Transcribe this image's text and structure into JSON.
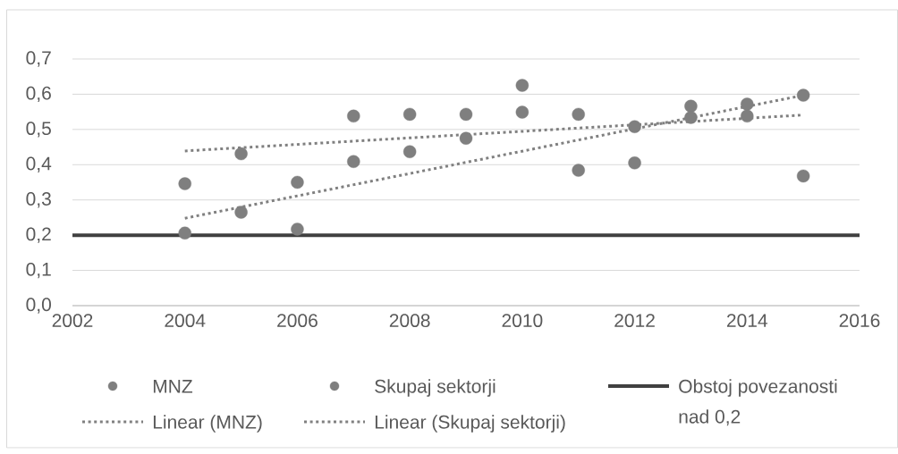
{
  "chart_data": {
    "type": "scatter",
    "xlim": [
      2002,
      2016
    ],
    "xticks": [
      2002,
      2004,
      2006,
      2008,
      2010,
      2012,
      2014,
      2016
    ],
    "ylim": [
      0,
      0.7
    ],
    "yticks": [
      {
        "value": 0,
        "label": "0,0"
      },
      {
        "value": 0.1,
        "label": "0,1"
      },
      {
        "value": 0.2,
        "label": "0,2"
      },
      {
        "value": 0.3,
        "label": "0,3"
      },
      {
        "value": 0.4,
        "label": "0,4"
      },
      {
        "value": 0.5,
        "label": "0,5"
      },
      {
        "value": 0.6,
        "label": "0,6"
      },
      {
        "value": 0.7,
        "label": "0,7"
      }
    ],
    "grid": "y",
    "legend": "bottom",
    "series": [
      {
        "name": "MNZ",
        "color": "#7f7f7f",
        "marker": "circle",
        "x": [
          2004,
          2005,
          2006,
          2007,
          2008,
          2009,
          2010,
          2011,
          2012,
          2013,
          2014,
          2015
        ],
        "values": [
          0.346,
          0.431,
          0.35,
          0.538,
          0.543,
          0.543,
          0.625,
          0.543,
          0.508,
          0.566,
          0.572,
          0.368
        ]
      },
      {
        "name": "Skupaj sektorji",
        "color": "#7f7f7f",
        "marker": "circle",
        "x": [
          2004,
          2005,
          2006,
          2007,
          2008,
          2009,
          2010,
          2011,
          2012,
          2013,
          2014,
          2015
        ],
        "values": [
          0.206,
          0.265,
          0.217,
          0.409,
          0.437,
          0.475,
          0.549,
          0.384,
          0.405,
          0.534,
          0.538,
          0.597
        ]
      },
      {
        "name": "Obstoj povezanosti nad 0,2",
        "type": "line",
        "line_style": "solid",
        "marker": "none",
        "color": "#404040",
        "x": [
          2002,
          2016
        ],
        "values": [
          0.2,
          0.2
        ]
      },
      {
        "name": "Linear (MNZ)",
        "type": "line",
        "line_style": "dotted",
        "marker": "none",
        "color": "#808080",
        "x": [
          2004,
          2015
        ],
        "values": [
          0.439,
          0.541
        ]
      },
      {
        "name": "Linear (Skupaj sektorji)",
        "type": "line",
        "line_style": "dotted",
        "marker": "none",
        "color": "#808080",
        "x": [
          2004,
          2015
        ],
        "values": [
          0.248,
          0.597
        ]
      }
    ]
  }
}
